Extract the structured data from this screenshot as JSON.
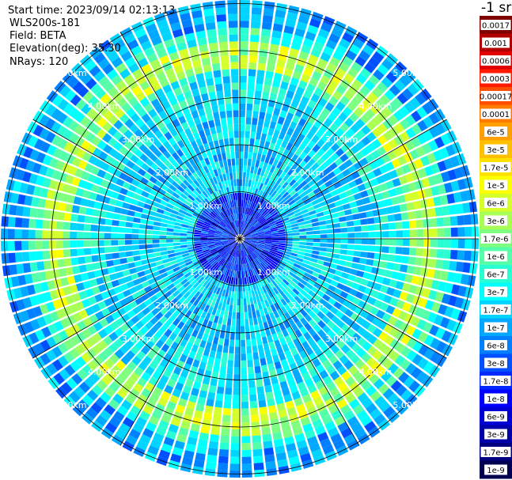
{
  "header": {
    "start_time": "Start time: 2023/09/14 02:13:13",
    "station": "WLS200s-181",
    "field": "Field: BETA",
    "elevation": "Elevation(deg): 35.30",
    "nrays": "NRays: 120"
  },
  "colorbar": {
    "units_label": "-1 sr",
    "labels": [
      "0.0017",
      "0.001",
      "0.0006",
      "0.0003",
      "0.00017",
      "0.0001",
      "6e-5",
      "3e-5",
      "1.7e-5",
      "1e-5",
      "6e-6",
      "3e-6",
      "1.7e-6",
      "1e-6",
      "6e-7",
      "3e-7",
      "1.7e-7",
      "1e-7",
      "6e-8",
      "3e-8",
      "1.7e-8",
      "1e-8",
      "6e-9",
      "3e-9",
      "1.7e-9",
      "1e-9"
    ],
    "colors": [
      "#7f0000",
      "#b00000",
      "#e00000",
      "#ff1a00",
      "#ff4d00",
      "#ff7a00",
      "#ff9f00",
      "#ffc000",
      "#ffe000",
      "#fbff00",
      "#d4ff2a",
      "#aaff55",
      "#7fff80",
      "#55ffaa",
      "#2affd4",
      "#00ffff",
      "#00d4ff",
      "#00a8ff",
      "#0080ff",
      "#0050ff",
      "#0028ff",
      "#0000ff",
      "#0000d4",
      "#0000aa",
      "#000080",
      "#000050"
    ]
  },
  "range_labels": [
    "1.00km",
    "2.00km",
    "3.00km",
    "4.00km",
    "5.00km"
  ]
}
